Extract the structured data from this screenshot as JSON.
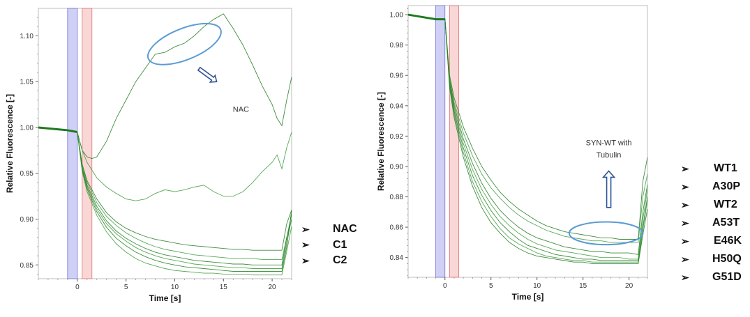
{
  "chart_data": [
    {
      "type": "line",
      "title": "",
      "xlabel": "Time [s]",
      "ylabel": "Relative Fluorescence [-]",
      "xlim": [
        -4,
        22
      ],
      "ylim": [
        0.835,
        1.13
      ],
      "x_ticks": [
        0,
        5,
        10,
        15,
        20
      ],
      "y_ticks": [
        0.85,
        0.9,
        0.95,
        1.0,
        1.05,
        1.1
      ],
      "y_tick_labels": [
        "0.85",
        "0.90",
        "0.95",
        "1.00",
        "1.05",
        "1.10"
      ],
      "shaded_regions": [
        {
          "x": [
            -1,
            0
          ],
          "color": "#c8c8f5"
        },
        {
          "x": [
            0.5,
            1.5
          ],
          "color": "#f8d0d0"
        }
      ],
      "series": [
        {
          "x": [
            -4,
            -2,
            -1,
            -0.5,
            0,
            0.5,
            1,
            1.5,
            2,
            3,
            4,
            5,
            6,
            7,
            8,
            9,
            10,
            11,
            12,
            13,
            14,
            15,
            16,
            17,
            18,
            19,
            20,
            20.5,
            21,
            21.5,
            22
          ],
          "values": [
            1.0,
            0.998,
            0.997,
            0.996,
            0.995,
            0.975,
            0.968,
            0.966,
            0.968,
            0.985,
            1.01,
            1.03,
            1.05,
            1.065,
            1.08,
            1.082,
            1.088,
            1.092,
            1.1,
            1.11,
            1.118,
            1.124,
            1.108,
            1.09,
            1.068,
            1.045,
            1.025,
            1.01,
            1.002,
            1.03,
            1.055
          ]
        },
        {
          "x": [
            -4,
            -2,
            -1,
            -0.5,
            0,
            0.5,
            1,
            2,
            3,
            4,
            5,
            6,
            7,
            8,
            9,
            10,
            11,
            12,
            13,
            14,
            15,
            16,
            17,
            18,
            19,
            20,
            20.5,
            21,
            21.5,
            22
          ],
          "values": [
            1.0,
            0.998,
            0.997,
            0.996,
            0.995,
            0.975,
            0.962,
            0.945,
            0.935,
            0.928,
            0.922,
            0.92,
            0.922,
            0.928,
            0.932,
            0.93,
            0.932,
            0.935,
            0.937,
            0.93,
            0.925,
            0.925,
            0.93,
            0.94,
            0.952,
            0.962,
            0.97,
            0.955,
            0.978,
            0.995
          ]
        },
        {
          "x": [
            -4,
            -2,
            -1,
            -0.5,
            0,
            0.5,
            1,
            2,
            3,
            4,
            5,
            6,
            7,
            8,
            9,
            10,
            11,
            12,
            13,
            14,
            15,
            16,
            17,
            18,
            19,
            20,
            20.5,
            21,
            21.5,
            22
          ],
          "values": [
            1.0,
            0.998,
            0.997,
            0.996,
            0.995,
            0.96,
            0.942,
            0.922,
            0.907,
            0.897,
            0.89,
            0.885,
            0.881,
            0.878,
            0.876,
            0.874,
            0.872,
            0.871,
            0.87,
            0.869,
            0.868,
            0.867,
            0.867,
            0.866,
            0.866,
            0.866,
            0.866,
            0.866,
            0.895,
            0.91
          ]
        },
        {
          "x": [
            -4,
            -2,
            -1,
            -0.5,
            0,
            0.5,
            1,
            2,
            3,
            4,
            5,
            6,
            7,
            8,
            9,
            10,
            11,
            12,
            13,
            14,
            15,
            16,
            17,
            18,
            19,
            20,
            20.5,
            21,
            21.5,
            22
          ],
          "values": [
            1.0,
            0.998,
            0.997,
            0.996,
            0.995,
            0.958,
            0.94,
            0.918,
            0.903,
            0.893,
            0.885,
            0.879,
            0.874,
            0.87,
            0.867,
            0.865,
            0.863,
            0.861,
            0.86,
            0.859,
            0.858,
            0.857,
            0.857,
            0.857,
            0.856,
            0.856,
            0.856,
            0.856,
            0.88,
            0.9
          ]
        },
        {
          "x": [
            -4,
            -2,
            -1,
            -0.5,
            0,
            0.5,
            1,
            2,
            3,
            4,
            5,
            6,
            7,
            8,
            9,
            10,
            11,
            12,
            13,
            14,
            15,
            16,
            17,
            18,
            19,
            20,
            20.5,
            21,
            21.5,
            22
          ],
          "values": [
            1.0,
            0.998,
            0.997,
            0.996,
            0.995,
            0.956,
            0.937,
            0.914,
            0.898,
            0.887,
            0.879,
            0.873,
            0.868,
            0.864,
            0.861,
            0.859,
            0.857,
            0.855,
            0.854,
            0.853,
            0.852,
            0.851,
            0.851,
            0.85,
            0.85,
            0.85,
            0.85,
            0.85,
            0.88,
            0.905
          ]
        },
        {
          "x": [
            -4,
            -2,
            -1,
            -0.5,
            0,
            0.5,
            1,
            2,
            3,
            4,
            5,
            6,
            7,
            8,
            9,
            10,
            11,
            12,
            13,
            14,
            15,
            16,
            17,
            18,
            19,
            20,
            20.5,
            21,
            21.5,
            22
          ],
          "values": [
            1.0,
            0.998,
            0.997,
            0.996,
            0.995,
            0.955,
            0.935,
            0.911,
            0.895,
            0.884,
            0.876,
            0.869,
            0.864,
            0.86,
            0.857,
            0.855,
            0.853,
            0.851,
            0.85,
            0.849,
            0.848,
            0.847,
            0.847,
            0.846,
            0.846,
            0.846,
            0.846,
            0.846,
            0.875,
            0.9
          ]
        },
        {
          "x": [
            -4,
            -2,
            -1,
            -0.5,
            0,
            0.5,
            1,
            2,
            3,
            4,
            5,
            6,
            7,
            8,
            9,
            10,
            11,
            12,
            13,
            14,
            15,
            16,
            17,
            18,
            19,
            20,
            20.5,
            21,
            21.5,
            22
          ],
          "values": [
            1.0,
            0.998,
            0.997,
            0.996,
            0.995,
            0.954,
            0.933,
            0.908,
            0.891,
            0.879,
            0.871,
            0.864,
            0.859,
            0.855,
            0.852,
            0.85,
            0.848,
            0.847,
            0.846,
            0.845,
            0.844,
            0.843,
            0.843,
            0.843,
            0.843,
            0.843,
            0.843,
            0.843,
            0.87,
            0.91
          ]
        },
        {
          "x": [
            -4,
            -2,
            -1,
            -0.5,
            0,
            0.5,
            1,
            2,
            3,
            4,
            5,
            6,
            7,
            8,
            9,
            10,
            11,
            12,
            13,
            14,
            15,
            16,
            17,
            18,
            19,
            20,
            20.5,
            21,
            21.5,
            22
          ],
          "values": [
            1.0,
            0.998,
            0.997,
            0.996,
            0.995,
            0.952,
            0.93,
            0.904,
            0.886,
            0.873,
            0.864,
            0.857,
            0.852,
            0.849,
            0.846,
            0.844,
            0.843,
            0.842,
            0.841,
            0.841,
            0.84,
            0.84,
            0.84,
            0.839,
            0.839,
            0.839,
            0.839,
            0.839,
            0.865,
            0.892
          ]
        }
      ],
      "annotations": [
        {
          "text": "NAC",
          "x": 16.8,
          "y": 1.017,
          "type": "label"
        },
        {
          "type": "ellipse",
          "cx": 11,
          "cy": 1.091,
          "rx": 4,
          "ry": 0.017,
          "color": "#5b9bd5"
        },
        {
          "type": "arrow",
          "from": [
            12.5,
            1.064
          ],
          "to": [
            14.3,
            1.05
          ],
          "color": "#2f5496"
        }
      ]
    },
    {
      "type": "line",
      "title": "",
      "xlabel": "Time [s]",
      "ylabel": "Relative Fluorescence [-]",
      "xlim": [
        -4,
        22
      ],
      "ylim": [
        0.827,
        1.006
      ],
      "x_ticks": [
        0,
        5,
        10,
        15,
        20
      ],
      "y_ticks": [
        0.84,
        0.86,
        0.88,
        0.9,
        0.92,
        0.94,
        0.96,
        0.98,
        1.0
      ],
      "y_tick_labels": [
        "0.84",
        "0.86",
        "0.88",
        "0.90",
        "0.92",
        "0.94",
        "0.96",
        "0.98",
        "1.00"
      ],
      "shaded_regions": [
        {
          "x": [
            -1,
            0
          ],
          "color": "#c8c8f5"
        },
        {
          "x": [
            0.5,
            1.5
          ],
          "color": "#f8d0d0"
        }
      ],
      "series": [
        {
          "x": [
            -4,
            -2,
            -1,
            -0.5,
            0,
            0.5,
            1,
            2,
            3,
            4,
            5,
            6,
            7,
            8,
            9,
            10,
            11,
            12,
            13,
            14,
            15,
            16,
            17,
            18,
            19,
            20,
            21,
            21.5,
            22
          ],
          "values": [
            1.0,
            0.998,
            0.997,
            0.997,
            0.997,
            0.96,
            0.945,
            0.926,
            0.912,
            0.9,
            0.891,
            0.883,
            0.877,
            0.872,
            0.868,
            0.864,
            0.861,
            0.859,
            0.857,
            0.856,
            0.855,
            0.854,
            0.853,
            0.853,
            0.852,
            0.852,
            0.852,
            0.89,
            0.906
          ]
        },
        {
          "x": [
            -4,
            -2,
            -1,
            -0.5,
            0,
            0.5,
            1,
            2,
            3,
            4,
            5,
            6,
            7,
            8,
            9,
            10,
            11,
            12,
            13,
            14,
            15,
            16,
            17,
            18,
            19,
            20,
            21,
            21.5,
            22
          ],
          "values": [
            1.0,
            0.998,
            0.997,
            0.997,
            0.997,
            0.958,
            0.942,
            0.922,
            0.907,
            0.895,
            0.886,
            0.879,
            0.873,
            0.868,
            0.864,
            0.861,
            0.858,
            0.856,
            0.854,
            0.853,
            0.852,
            0.851,
            0.851,
            0.85,
            0.85,
            0.85,
            0.85,
            0.88,
            0.895
          ]
        },
        {
          "x": [
            -4,
            -2,
            -1,
            -0.5,
            0,
            0.5,
            1,
            2,
            3,
            4,
            5,
            6,
            7,
            8,
            9,
            10,
            11,
            12,
            13,
            14,
            15,
            16,
            17,
            18,
            19,
            20,
            21,
            21.5,
            22
          ],
          "values": [
            1.0,
            0.998,
            0.997,
            0.997,
            0.997,
            0.957,
            0.94,
            0.918,
            0.902,
            0.889,
            0.879,
            0.871,
            0.865,
            0.86,
            0.856,
            0.853,
            0.851,
            0.849,
            0.847,
            0.846,
            0.845,
            0.844,
            0.844,
            0.843,
            0.843,
            0.843,
            0.842,
            0.87,
            0.888
          ]
        },
        {
          "x": [
            -4,
            -2,
            -1,
            -0.5,
            0,
            0.5,
            1,
            2,
            3,
            4,
            5,
            6,
            7,
            8,
            9,
            10,
            11,
            12,
            13,
            14,
            15,
            16,
            17,
            18,
            19,
            20,
            21,
            21.5,
            22
          ],
          "values": [
            1.0,
            0.998,
            0.997,
            0.997,
            0.997,
            0.956,
            0.938,
            0.915,
            0.898,
            0.885,
            0.875,
            0.867,
            0.861,
            0.856,
            0.852,
            0.849,
            0.847,
            0.845,
            0.844,
            0.843,
            0.842,
            0.841,
            0.84,
            0.84,
            0.84,
            0.839,
            0.839,
            0.865,
            0.885
          ]
        },
        {
          "x": [
            -4,
            -2,
            -1,
            -0.5,
            0,
            0.5,
            1,
            2,
            3,
            4,
            5,
            6,
            7,
            8,
            9,
            10,
            11,
            12,
            13,
            14,
            15,
            16,
            17,
            18,
            19,
            20,
            21,
            21.5,
            22
          ],
          "values": [
            1.0,
            0.998,
            0.997,
            0.997,
            0.997,
            0.955,
            0.936,
            0.912,
            0.894,
            0.881,
            0.871,
            0.863,
            0.857,
            0.852,
            0.848,
            0.846,
            0.844,
            0.842,
            0.841,
            0.84,
            0.839,
            0.839,
            0.838,
            0.838,
            0.838,
            0.838,
            0.838,
            0.86,
            0.88
          ]
        },
        {
          "x": [
            -4,
            -2,
            -1,
            -0.5,
            0,
            0.5,
            1,
            2,
            3,
            4,
            5,
            6,
            7,
            8,
            9,
            10,
            11,
            12,
            13,
            14,
            15,
            16,
            17,
            18,
            19,
            20,
            21,
            21.5,
            22
          ],
          "values": [
            1.0,
            0.998,
            0.997,
            0.997,
            0.997,
            0.954,
            0.934,
            0.909,
            0.89,
            0.877,
            0.867,
            0.859,
            0.853,
            0.849,
            0.846,
            0.843,
            0.841,
            0.84,
            0.839,
            0.838,
            0.838,
            0.837,
            0.837,
            0.837,
            0.837,
            0.837,
            0.837,
            0.858,
            0.878
          ]
        },
        {
          "x": [
            -4,
            -2,
            -1,
            -0.5,
            0,
            0.5,
            1,
            2,
            3,
            4,
            5,
            6,
            7,
            8,
            9,
            10,
            11,
            12,
            13,
            14,
            15,
            16,
            17,
            18,
            19,
            20,
            21,
            21.5,
            22
          ],
          "values": [
            1.0,
            0.998,
            0.997,
            0.997,
            0.997,
            0.952,
            0.932,
            0.906,
            0.887,
            0.873,
            0.863,
            0.856,
            0.85,
            0.846,
            0.843,
            0.841,
            0.84,
            0.839,
            0.838,
            0.837,
            0.837,
            0.836,
            0.836,
            0.836,
            0.836,
            0.836,
            0.836,
            0.855,
            0.872
          ]
        }
      ],
      "annotations": [
        {
          "text": "SYN-WT with",
          "x": 17.8,
          "y": 0.914,
          "type": "label"
        },
        {
          "text": "Tubulin",
          "x": 17.8,
          "y": 0.906,
          "type": "label"
        },
        {
          "type": "ellipse",
          "cx": 17.5,
          "cy": 0.856,
          "rx": 4,
          "ry": 0.0075,
          "color": "#5b9bd5"
        },
        {
          "type": "arrow",
          "from": [
            17.8,
            0.873
          ],
          "to": [
            17.8,
            0.897
          ],
          "color": "#2f5496"
        }
      ]
    }
  ],
  "legend_left": [
    "NAC",
    "C1",
    "C2"
  ],
  "legend_right": [
    "WT1",
    "A30P",
    "WT2",
    "A53T",
    "E46K",
    "H50Q",
    "G51D"
  ],
  "bullet_glyph": "➢",
  "colors": {
    "line": "#3a9a3a",
    "line_dark": "#1e7a1e",
    "ellipse": "#5b9bd5",
    "arrow": "#2f5496"
  }
}
